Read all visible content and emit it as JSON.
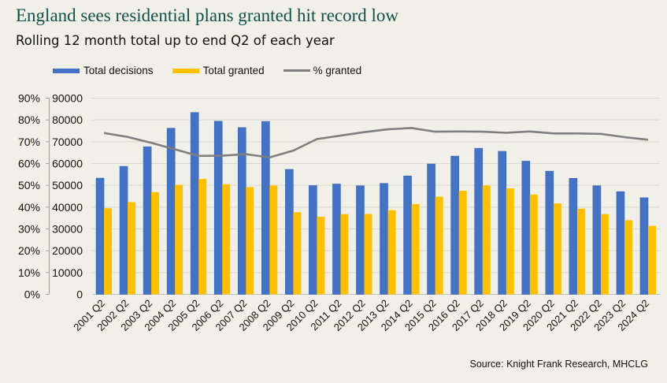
{
  "chart_data": {
    "type": "bar",
    "title": "England sees residential plans granted hit record low",
    "subtitle": "Rolling 12 month total up to end Q2 of each year",
    "categories": [
      "2001 Q2",
      "2002 Q2",
      "2003 Q2",
      "2004 Q2",
      "2005 Q2",
      "2006 Q2",
      "2007 Q2",
      "2008 Q2",
      "2009 Q2",
      "2010 Q2",
      "2011 Q2",
      "2012 Q2",
      "2013 Q2",
      "2014 Q2",
      "2015 Q2",
      "2016 Q2",
      "2017 Q2",
      "2018 Q2",
      "2019 Q2",
      "2020 Q2",
      "2021 Q2",
      "2022 Q2",
      "2023 Q2",
      "2024 Q2"
    ],
    "series": [
      {
        "name": "Total decisions",
        "type": "bar",
        "axis": "right-of-pct",
        "color": "#4472C4",
        "values": [
          53300,
          58700,
          67700,
          76200,
          83400,
          79400,
          76500,
          79300,
          57300,
          49900,
          50600,
          49800,
          50900,
          54300,
          59800,
          63400,
          67000,
          65600,
          61100,
          56500,
          53200,
          49800,
          47100,
          44300
        ]
      },
      {
        "name": "Total granted",
        "type": "bar",
        "color": "#FFC000",
        "values": [
          39500,
          42300,
          46900,
          50200,
          52900,
          50500,
          49200,
          49900,
          37700,
          35600,
          36800,
          36900,
          38600,
          41400,
          44800,
          47500,
          49900,
          48600,
          45800,
          41700,
          39300,
          36800,
          34000,
          31400
        ]
      },
      {
        "name": "% granted",
        "type": "line",
        "color": "#7F7F7F",
        "values": [
          74.0,
          72.2,
          69.5,
          66.5,
          63.5,
          63.6,
          64.3,
          62.8,
          65.9,
          71.2,
          72.8,
          74.4,
          75.7,
          76.3,
          74.6,
          74.7,
          74.6,
          74.1,
          74.7,
          73.8,
          73.8,
          73.6,
          72.1,
          70.9
        ]
      }
    ],
    "y_axis_counts": {
      "ticks": [
        "0",
        "10000",
        "20000",
        "30000",
        "40000",
        "50000",
        "60000",
        "70000",
        "80000",
        "90000"
      ],
      "ylim": [
        0,
        90000
      ]
    },
    "y_axis_percent": {
      "ticks": [
        "0%",
        "10%",
        "20%",
        "30%",
        "40%",
        "50%",
        "60%",
        "70%",
        "80%",
        "90%"
      ],
      "ylim": [
        0,
        90
      ]
    },
    "grid": true,
    "legend_position": "top",
    "source": "Source: Knight Frank Research, MHCLG"
  }
}
